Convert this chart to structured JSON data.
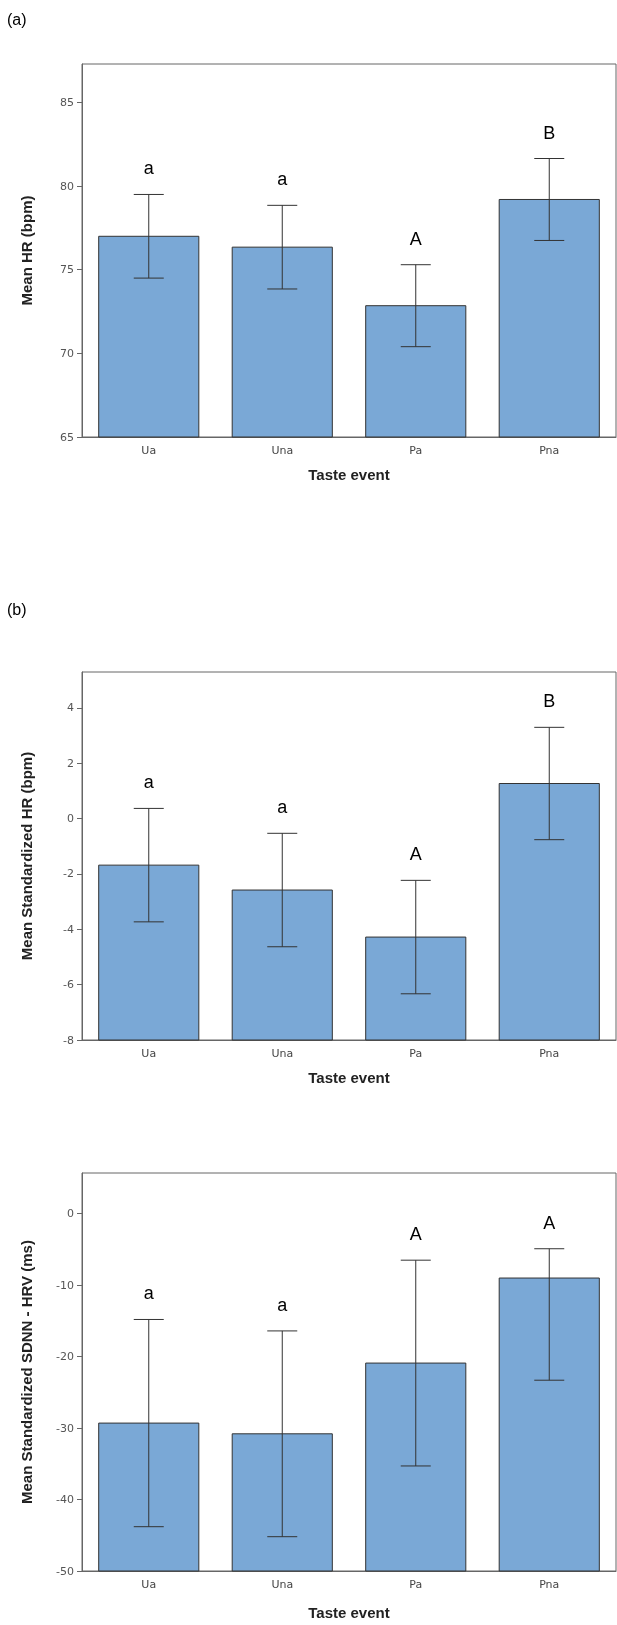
{
  "chart_data": [
    {
      "type": "bar",
      "title": "(a)",
      "xlabel": "Taste event",
      "ylabel": "Mean HR (bpm)",
      "categories": [
        "Ua",
        "Una",
        "Pa",
        "Pna"
      ],
      "base": [
        65,
        65,
        65,
        65
      ],
      "values": [
        12.0,
        11.35,
        7.85,
        14.2
      ],
      "errors": [
        2.5,
        2.5,
        2.45,
        2.45
      ],
      "color": "#7aa8d6",
      "ylim": [
        65,
        87.3
      ],
      "yticks": [
        65,
        70,
        75,
        80,
        85
      ],
      "annotations": [
        "a",
        "a",
        "A",
        "B"
      ]
    },
    {
      "type": "bar",
      "title": "(b)",
      "xlabel": "Taste event",
      "ylabel": "Mean Standardized HR (bpm)",
      "categories": [
        "Ua",
        "Una",
        "Pa",
        "Pna"
      ],
      "base": [
        -8,
        -8,
        -8,
        -8
      ],
      "values": [
        6.32,
        5.42,
        3.72,
        9.27
      ],
      "errors": [
        2.05,
        2.05,
        2.05,
        2.03
      ],
      "color": "#7aa8d6",
      "ylim": [
        -8,
        5.3
      ],
      "yticks": [
        -8,
        -6,
        -4,
        -2,
        0,
        2,
        4
      ],
      "annotations": [
        "a",
        "a",
        "A",
        "B"
      ]
    },
    {
      "type": "bar",
      "xlabel": "Taste event",
      "ylabel": "Mean Standardized SDNN - HRV (ms)",
      "categories": [
        "Ua",
        "Una",
        "Pa",
        "Pna"
      ],
      "base": [
        -50,
        -50,
        -50,
        -50
      ],
      "values": [
        20.7,
        19.2,
        29.1,
        41.0
      ],
      "errors": [
        14.5,
        14.4,
        14.4,
        [
          -23.3,
          -4.9
        ]
      ],
      "color": "#7aa8d6",
      "ylim": [
        -50,
        5.7
      ],
      "yticks": [
        -50,
        -40,
        -30,
        -20,
        -10,
        0
      ],
      "annotations": [
        "a",
        "a",
        "A",
        "A"
      ]
    }
  ]
}
